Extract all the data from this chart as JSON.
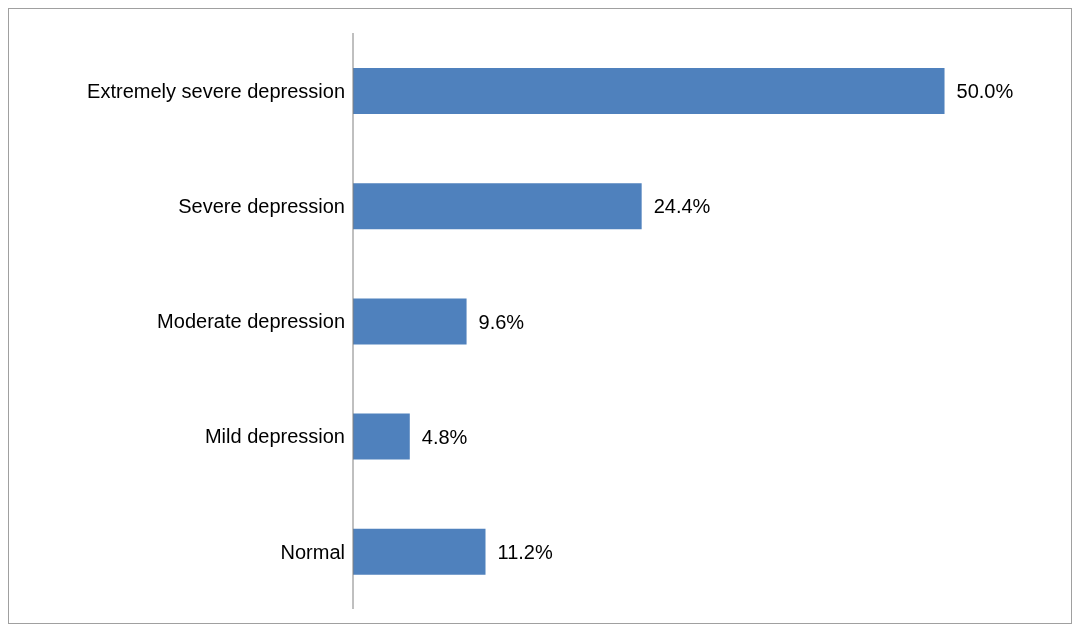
{
  "chart_data": {
    "type": "bar",
    "orientation": "horizontal",
    "categories": [
      "Extremely severe depression",
      "Severe depression",
      "Moderate depression",
      "Mild depression",
      "Normal"
    ],
    "values": [
      50.0,
      24.4,
      9.6,
      4.8,
      11.2
    ],
    "value_labels": [
      "50.0%",
      "24.4%",
      "9.6%",
      "4.8%",
      "11.2%"
    ],
    "color": "#4f81bd",
    "grid": false
  }
}
